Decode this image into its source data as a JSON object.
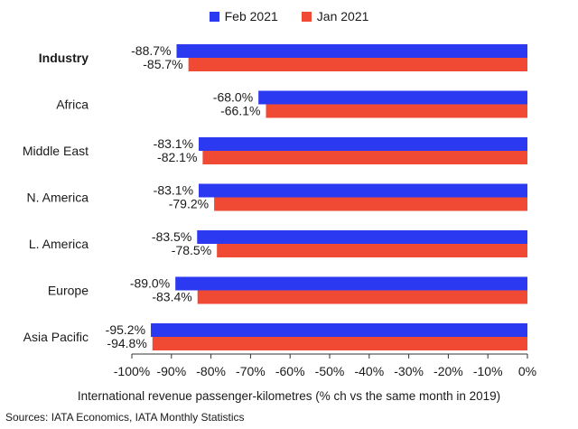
{
  "chart_data": {
    "type": "bar",
    "orientation": "horizontal",
    "categories": [
      "Industry",
      "Africa",
      "Middle East",
      "N. America",
      "L. America",
      "Europe",
      "Asia Pacific"
    ],
    "series": [
      {
        "name": "Feb 2021",
        "color": "#2b3af0",
        "values": [
          -88.7,
          -68.0,
          -83.1,
          -83.1,
          -83.5,
          -89.0,
          -95.2
        ]
      },
      {
        "name": "Jan 2021",
        "color": "#f04a35",
        "values": [
          -85.7,
          -66.1,
          -82.1,
          -79.2,
          -78.5,
          -83.4,
          -94.8
        ]
      }
    ],
    "data_labels": {
      "Feb 2021": [
        "-88.7%",
        "-68.0%",
        "-83.1%",
        "-83.1%",
        "-83.5%",
        "-89.0%",
        "-95.2%"
      ],
      "Jan 2021": [
        "-85.7%",
        "-66.1%",
        "-82.1%",
        "-79.2%",
        "-78.5%",
        "-83.4%",
        "-94.8%"
      ]
    },
    "bold_category": "Industry",
    "xlim": [
      -100,
      0
    ],
    "x_ticks": [
      -100,
      -90,
      -80,
      -70,
      -60,
      -50,
      -40,
      -30,
      -20,
      -10,
      0
    ],
    "x_tick_labels": [
      "-100%",
      "-90%",
      "-80%",
      "-70%",
      "-60%",
      "-50%",
      "-40%",
      "-30%",
      "-20%",
      "-10%",
      "0%"
    ],
    "xlabel": "International revenue passenger-kilometres (% ch vs the same month in 2019)",
    "legend_position": "top-center",
    "grid": false
  },
  "footer": {
    "source": "Sources: IATA Economics, IATA Monthly Statistics"
  }
}
